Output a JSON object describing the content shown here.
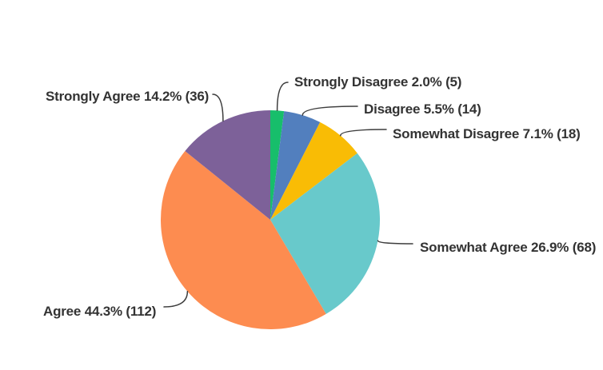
{
  "chart_data": {
    "type": "pie",
    "title": "",
    "legend_position": "none",
    "label_style": "outside-with-leader-lines",
    "start_angle_deg": 0,
    "direction": "clockwise",
    "text_color": "#333333",
    "leader_line_color": "#3d3d3d",
    "background_color": "#ffffff",
    "slices": [
      {
        "label": "Strongly Disagree",
        "pct": 2.0,
        "count": 5,
        "color": "#17BE6B",
        "display": "Strongly Disagree 2.0% (5)"
      },
      {
        "label": "Disagree",
        "pct": 5.5,
        "count": 14,
        "color": "#527FBE",
        "display": "Disagree 5.5% (14)"
      },
      {
        "label": "Somewhat Disagree",
        "pct": 7.1,
        "count": 18,
        "color": "#F9BC05",
        "display": "Somewhat Disagree 7.1% (18)"
      },
      {
        "label": "Somewhat Agree",
        "pct": 26.9,
        "count": 68,
        "color": "#68C9CB",
        "display": "Somewhat Agree 26.9% (68)"
      },
      {
        "label": "Agree",
        "pct": 44.3,
        "count": 112,
        "color": "#FD8C50",
        "display": "Agree 44.3% (112)"
      },
      {
        "label": "Strongly Agree",
        "pct": 14.2,
        "count": 36,
        "color": "#7D6199",
        "display": "Strongly Agree 14.2% (36)"
      }
    ]
  }
}
